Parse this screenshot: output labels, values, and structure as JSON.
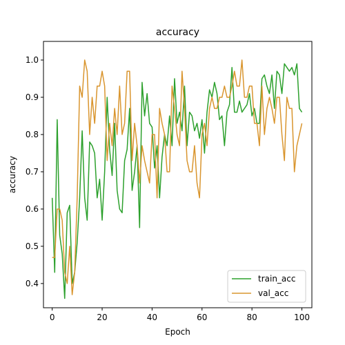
{
  "chart_data": {
    "type": "line",
    "title": "accuracy",
    "xlabel": "Epoch",
    "ylabel": "accuracy",
    "xlim": [
      -3.5,
      104
    ],
    "ylim": [
      0.335,
      1.05
    ],
    "xticks": [
      0,
      20,
      40,
      60,
      80,
      100
    ],
    "yticks": [
      0.4,
      0.5,
      0.6,
      0.7,
      0.8,
      0.9,
      1.0
    ],
    "xtick_labels": [
      "0",
      "20",
      "40",
      "60",
      "80",
      "100"
    ],
    "ytick_labels": [
      "0.4",
      "0.5",
      "0.6",
      "0.7",
      "0.8",
      "0.9",
      "1.0"
    ],
    "grid": false,
    "legend_position": "lower-right",
    "x": [
      0,
      1,
      2,
      3,
      4,
      5,
      6,
      7,
      8,
      9,
      10,
      11,
      12,
      13,
      14,
      15,
      16,
      17,
      18,
      19,
      20,
      21,
      22,
      23,
      24,
      25,
      26,
      27,
      28,
      29,
      30,
      31,
      32,
      33,
      34,
      35,
      36,
      37,
      38,
      39,
      40,
      41,
      42,
      43,
      44,
      45,
      46,
      47,
      48,
      49,
      50,
      51,
      52,
      53,
      54,
      55,
      56,
      57,
      58,
      59,
      60,
      61,
      62,
      63,
      64,
      65,
      66,
      67,
      68,
      69,
      70,
      71,
      72,
      73,
      74,
      75,
      76,
      77,
      78,
      79,
      80,
      81,
      82,
      83,
      84,
      85,
      86,
      87,
      88,
      89,
      90,
      91,
      92,
      93,
      94,
      95,
      96,
      97,
      98,
      99,
      100
    ],
    "series": [
      {
        "name": "train_acc",
        "color": "#2ca02c",
        "values": [
          0.63,
          0.43,
          0.84,
          0.53,
          0.48,
          0.36,
          0.59,
          0.61,
          0.4,
          0.43,
          0.51,
          0.63,
          0.81,
          0.63,
          0.57,
          0.78,
          0.77,
          0.75,
          0.63,
          0.68,
          0.57,
          0.7,
          0.9,
          0.76,
          0.69,
          0.83,
          0.65,
          0.6,
          0.59,
          0.73,
          0.76,
          0.87,
          0.65,
          0.7,
          0.77,
          0.55,
          0.94,
          0.85,
          0.91,
          0.83,
          0.82,
          0.71,
          0.77,
          0.63,
          0.74,
          0.8,
          0.77,
          0.85,
          0.77,
          0.95,
          0.83,
          0.86,
          0.81,
          0.93,
          0.77,
          0.86,
          0.85,
          0.81,
          0.83,
          0.79,
          0.84,
          0.75,
          0.86,
          0.92,
          0.9,
          0.94,
          0.91,
          0.84,
          0.85,
          0.77,
          0.86,
          0.88,
          0.98,
          0.86,
          0.86,
          0.89,
          0.86,
          0.87,
          0.88,
          0.91,
          0.85,
          0.87,
          0.83,
          0.83,
          0.95,
          0.96,
          0.93,
          0.91,
          0.96,
          0.87,
          0.97,
          0.96,
          0.91,
          0.99,
          0.98,
          0.97,
          0.98,
          0.96,
          0.99,
          0.87,
          0.86
        ]
      },
      {
        "name": "val_acc",
        "color": "#d9952e",
        "values": [
          0.47,
          0.47,
          0.6,
          0.6,
          0.57,
          0.43,
          0.4,
          0.5,
          0.37,
          0.43,
          0.63,
          0.93,
          0.9,
          1.0,
          0.97,
          0.8,
          0.9,
          0.83,
          0.93,
          0.93,
          0.97,
          0.93,
          0.73,
          0.83,
          0.77,
          0.87,
          0.8,
          0.93,
          0.8,
          0.83,
          0.97,
          0.97,
          0.73,
          0.83,
          0.77,
          0.67,
          0.77,
          0.73,
          0.7,
          0.67,
          0.8,
          0.8,
          0.63,
          0.87,
          0.83,
          0.8,
          0.7,
          0.7,
          0.93,
          0.87,
          0.8,
          0.77,
          0.97,
          0.87,
          0.73,
          0.7,
          0.7,
          0.77,
          0.67,
          0.63,
          0.8,
          0.83,
          0.77,
          0.87,
          0.9,
          0.87,
          0.87,
          0.9,
          0.9,
          0.93,
          0.9,
          0.9,
          0.93,
          0.97,
          0.93,
          0.93,
          1.0,
          0.9,
          0.9,
          0.93,
          0.93,
          0.83,
          0.83,
          0.77,
          0.93,
          0.8,
          0.87,
          0.9,
          0.87,
          0.83,
          0.9,
          0.9,
          0.8,
          0.73,
          0.9,
          0.87,
          0.87,
          0.7,
          0.77,
          0.8,
          0.83
        ]
      }
    ]
  }
}
